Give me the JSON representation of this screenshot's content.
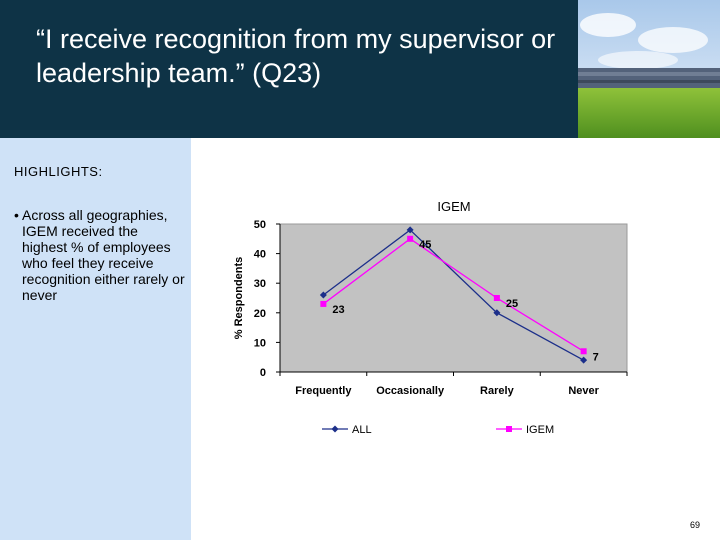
{
  "slide": {
    "title": "“I receive recognition from my supervisor or leadership team.” (Q23)",
    "highlights_label": "HIGHLIGHTS:",
    "bullet_marker": "•",
    "bullets": [
      "Across all geographies, IGEM received the highest % of employees who feel they receive recognition either rarely or never"
    ],
    "page_number": "69",
    "colors": {
      "header_bg": "#0e3346",
      "sidebar_bg": "#cfe2f7"
    }
  },
  "chart_data": {
    "type": "line",
    "title": "IGEM",
    "xlabel": "",
    "ylabel": "% Respondents",
    "categories": [
      "Frequently",
      "Occasionally",
      "Rarely",
      "Never"
    ],
    "ylim": [
      0,
      50
    ],
    "yticks": [
      0,
      10,
      20,
      30,
      40,
      50
    ],
    "grid": false,
    "legend_position": "bottom",
    "series": [
      {
        "name": "ALL",
        "values": [
          26,
          48,
          20,
          4
        ],
        "color": "#1c2f8a",
        "marker": "diamond",
        "data_labels": false
      },
      {
        "name": "IGEM",
        "values": [
          23,
          45,
          25,
          7
        ],
        "color": "#ff00ff",
        "marker": "square",
        "data_labels": true
      }
    ]
  }
}
